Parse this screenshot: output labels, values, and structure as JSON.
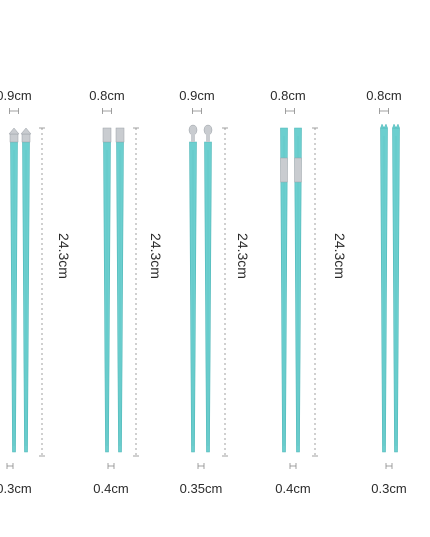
{
  "colors": {
    "chopstick": "#6ccfcf",
    "chopstick_dark": "#4fb7b8",
    "metal": "#c9ccd0",
    "line": "#8a8a8a",
    "text": "#2b2b2b"
  },
  "products": [
    {
      "top_width": "0.9cm",
      "length": "24.3cm",
      "tip_width": "0.3cm",
      "head": "flower-metal-cap"
    },
    {
      "top_width": "0.8cm",
      "length": "24.3cm",
      "tip_width": "0.4cm",
      "head": "metal-band-cap"
    },
    {
      "top_width": "0.9cm",
      "length": "24.3cm",
      "tip_width": "0.35cm",
      "head": "spoon-metal-cap"
    },
    {
      "top_width": "0.8cm",
      "length": "24.3cm",
      "tip_width": "0.4cm",
      "head": "mid-metal-ring"
    },
    {
      "top_width": "0.8cm",
      "length": "",
      "tip_width": "0.3cm",
      "head": "crown-tip"
    }
  ]
}
